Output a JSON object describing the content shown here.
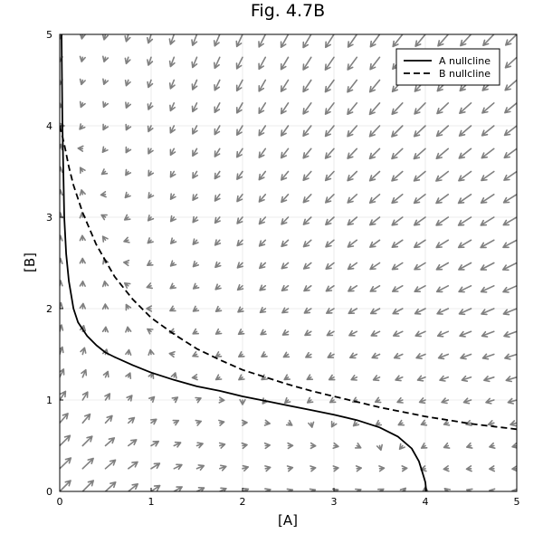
{
  "chart_data": {
    "type": "vector-field",
    "title": "Fig. 4.7B",
    "xlabel": "[A]",
    "ylabel": "[B]",
    "xlim": [
      0,
      5
    ],
    "ylim": [
      0,
      5
    ],
    "xticks": [
      "0",
      "1",
      "2",
      "3",
      "4",
      "5"
    ],
    "yticks": [
      "0",
      "1",
      "2",
      "3",
      "4",
      "5"
    ],
    "grid": true,
    "legend_position": "top-right",
    "arrow_color": "#808080",
    "series": [
      {
        "name": "A nullcline",
        "style": "solid",
        "color": "#000000",
        "points": [
          [
            0.02,
            5.0
          ],
          [
            0.025,
            4.5
          ],
          [
            0.03,
            4.0
          ],
          [
            0.04,
            3.5
          ],
          [
            0.05,
            3.0
          ],
          [
            0.07,
            2.6
          ],
          [
            0.1,
            2.3
          ],
          [
            0.15,
            2.0
          ],
          [
            0.2,
            1.85
          ],
          [
            0.3,
            1.7
          ],
          [
            0.4,
            1.6
          ],
          [
            0.5,
            1.52
          ],
          [
            0.6,
            1.47
          ],
          [
            0.8,
            1.38
          ],
          [
            1.0,
            1.3
          ],
          [
            1.25,
            1.22
          ],
          [
            1.5,
            1.15
          ],
          [
            1.75,
            1.1
          ],
          [
            2.0,
            1.04
          ],
          [
            2.25,
            0.99
          ],
          [
            2.5,
            0.94
          ],
          [
            2.75,
            0.89
          ],
          [
            3.0,
            0.84
          ],
          [
            3.25,
            0.78
          ],
          [
            3.5,
            0.7
          ],
          [
            3.7,
            0.6
          ],
          [
            3.85,
            0.47
          ],
          [
            3.93,
            0.33
          ],
          [
            3.97,
            0.2
          ],
          [
            4.0,
            0.1
          ],
          [
            4.01,
            0.0
          ]
        ]
      },
      {
        "name": "B nullcline",
        "style": "dashed",
        "color": "#000000",
        "points": [
          [
            0.0,
            4.0
          ],
          [
            0.05,
            3.8
          ],
          [
            0.1,
            3.55
          ],
          [
            0.15,
            3.35
          ],
          [
            0.25,
            3.05
          ],
          [
            0.4,
            2.7
          ],
          [
            0.6,
            2.35
          ],
          [
            0.8,
            2.1
          ],
          [
            1.0,
            1.9
          ],
          [
            1.25,
            1.72
          ],
          [
            1.5,
            1.56
          ],
          [
            1.75,
            1.44
          ],
          [
            2.0,
            1.33
          ],
          [
            2.25,
            1.25
          ],
          [
            2.5,
            1.17
          ],
          [
            2.75,
            1.1
          ],
          [
            3.0,
            1.04
          ],
          [
            3.25,
            0.98
          ],
          [
            3.5,
            0.92
          ],
          [
            3.75,
            0.87
          ],
          [
            4.0,
            0.82
          ],
          [
            4.25,
            0.78
          ],
          [
            4.5,
            0.74
          ],
          [
            4.75,
            0.71
          ],
          [
            5.0,
            0.68
          ]
        ]
      }
    ]
  }
}
